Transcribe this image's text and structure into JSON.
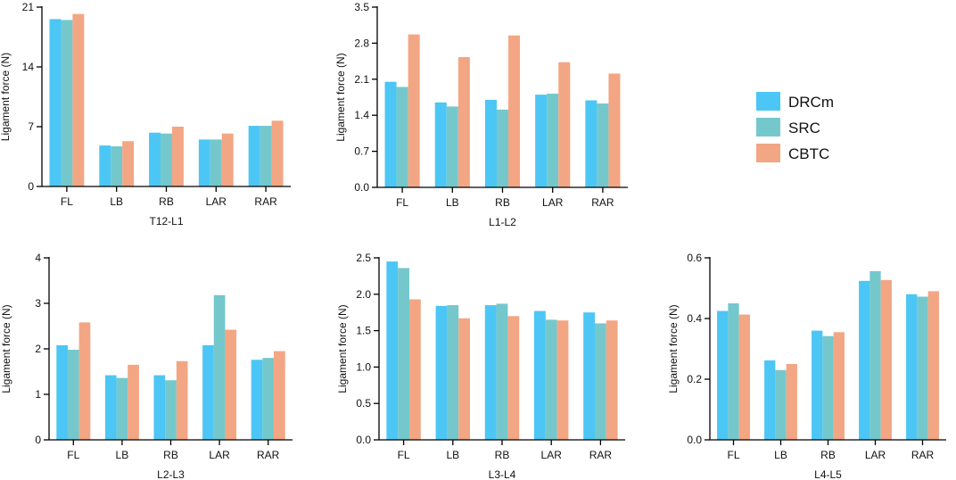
{
  "legend": {
    "entries": [
      {
        "name": "DRCm",
        "color": "#4cc6f5"
      },
      {
        "name": "SRC",
        "color": "#74c8cc"
      },
      {
        "name": "CBTC",
        "color": "#f3a683"
      }
    ]
  },
  "chart_data": [
    {
      "type": "bar",
      "title": "T12-L1",
      "ylabel": "Ligament force  (N)",
      "xlabel": "T12-L1",
      "categories": [
        "FL",
        "LB",
        "RB",
        "LAR",
        "RAR"
      ],
      "ylim": [
        0,
        21
      ],
      "yticks": [
        "0",
        "7",
        "14",
        "21"
      ],
      "series": [
        {
          "name": "DRCm",
          "values": [
            19.6,
            4.8,
            6.3,
            5.5,
            7.1
          ]
        },
        {
          "name": "SRC",
          "values": [
            19.5,
            4.7,
            6.2,
            5.5,
            7.1
          ]
        },
        {
          "name": "CBTC",
          "values": [
            20.2,
            5.3,
            7.0,
            6.2,
            7.7
          ]
        }
      ]
    },
    {
      "type": "bar",
      "title": "L1-L2",
      "ylabel": "Ligament force  (N)",
      "xlabel": "L1-L2",
      "categories": [
        "FL",
        "LB",
        "RB",
        "LAR",
        "RAR"
      ],
      "ylim": [
        0,
        3.5
      ],
      "yticks": [
        "0.0",
        "0.7",
        "1.4",
        "2.1",
        "2.8",
        "3.5"
      ],
      "series": [
        {
          "name": "DRCm",
          "values": [
            2.05,
            1.65,
            1.7,
            1.8,
            1.69
          ]
        },
        {
          "name": "SRC",
          "values": [
            1.95,
            1.57,
            1.51,
            1.82,
            1.63
          ]
        },
        {
          "name": "CBTC",
          "values": [
            2.97,
            2.53,
            2.95,
            2.43,
            2.21
          ]
        }
      ]
    },
    {
      "type": "bar",
      "title": "L2-L3",
      "ylabel": "Ligament force  (N)",
      "xlabel": "L2-L3",
      "categories": [
        "FL",
        "LB",
        "RB",
        "LAR",
        "RAR"
      ],
      "ylim": [
        0,
        4
      ],
      "yticks": [
        "0",
        "1",
        "2",
        "3",
        "4"
      ],
      "series": [
        {
          "name": "DRCm",
          "values": [
            2.08,
            1.42,
            1.42,
            2.08,
            1.76
          ]
        },
        {
          "name": "SRC",
          "values": [
            1.98,
            1.36,
            1.31,
            3.18,
            1.8
          ]
        },
        {
          "name": "CBTC",
          "values": [
            2.58,
            1.65,
            1.73,
            2.42,
            1.95
          ]
        }
      ]
    },
    {
      "type": "bar",
      "title": "L3-L4",
      "ylabel": "Ligament force  (N)",
      "xlabel": "L3-L4",
      "categories": [
        "FL",
        "LB",
        "RB",
        "LAR",
        "RAR"
      ],
      "ylim": [
        0,
        2.5
      ],
      "yticks": [
        "0.0",
        "0.5",
        "1.0",
        "1.5",
        "2.0",
        "2.5"
      ],
      "series": [
        {
          "name": "DRCm",
          "values": [
            2.45,
            1.84,
            1.85,
            1.77,
            1.75
          ]
        },
        {
          "name": "SRC",
          "values": [
            2.36,
            1.85,
            1.87,
            1.65,
            1.6
          ]
        },
        {
          "name": "CBTC",
          "values": [
            1.93,
            1.67,
            1.7,
            1.64,
            1.64
          ]
        }
      ]
    },
    {
      "type": "bar",
      "title": "L4-L5",
      "ylabel": "Ligament force  (N)",
      "xlabel": "L4-L5",
      "categories": [
        "FL",
        "LB",
        "RB",
        "LAR",
        "RAR"
      ],
      "ylim": [
        0,
        0.6
      ],
      "yticks": [
        "0.0",
        "0.2",
        "0.4",
        "0.6"
      ],
      "series": [
        {
          "name": "DRCm",
          "values": [
            0.425,
            0.262,
            0.36,
            0.524,
            0.48
          ]
        },
        {
          "name": "SRC",
          "values": [
            0.45,
            0.23,
            0.342,
            0.556,
            0.472
          ]
        },
        {
          "name": "CBTC",
          "values": [
            0.413,
            0.25,
            0.355,
            0.527,
            0.49
          ]
        }
      ]
    }
  ]
}
